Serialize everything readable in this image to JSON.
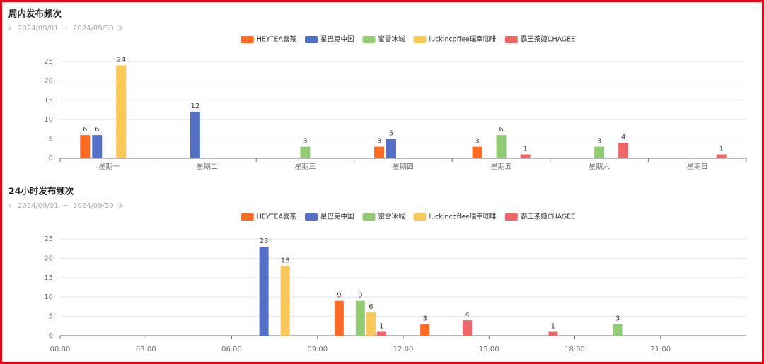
{
  "chart_data": [
    {
      "type": "bar",
      "title": "周内发布频次",
      "range": [
        "2024/09/01",
        "2024/09/30"
      ],
      "range_separator": "~",
      "categories": [
        "星期一",
        "星期二",
        "星期三",
        "星期四",
        "星期五",
        "星期六",
        "星期日"
      ],
      "series": [
        {
          "name": "HEYTEA喜茶",
          "color": "#ff6b22",
          "values": [
            6,
            null,
            null,
            3,
            3,
            null,
            null
          ]
        },
        {
          "name": "星巴克中国",
          "color": "#5470c6",
          "values": [
            6,
            12,
            null,
            5,
            null,
            null,
            null
          ]
        },
        {
          "name": "蜜雪冰城",
          "color": "#91cc75",
          "values": [
            null,
            null,
            3,
            null,
            6,
            3,
            null
          ]
        },
        {
          "name": "luckincoffee瑞幸咖啡",
          "color": "#fac858",
          "values": [
            24,
            null,
            null,
            null,
            null,
            null,
            null
          ]
        },
        {
          "name": "霸王茶姬CHAGEE",
          "color": "#ee6666",
          "values": [
            null,
            null,
            null,
            null,
            1,
            4,
            1
          ]
        }
      ],
      "ylim": [
        0,
        25
      ],
      "yticks": [
        0,
        5,
        10,
        15,
        20,
        25
      ],
      "grid": true,
      "legend": "top"
    },
    {
      "type": "bar",
      "title": "24小时发布频次",
      "range": [
        "2024/09/01",
        "2024/09/30"
      ],
      "range_separator": "~",
      "x": [
        7.5,
        10.5,
        13.5,
        16.5,
        19.5
      ],
      "series": [
        {
          "name": "HEYTEA喜茶",
          "color": "#ff6b22",
          "values": [
            null,
            9,
            3,
            null,
            null
          ]
        },
        {
          "name": "星巴克中国",
          "color": "#5470c6",
          "values": [
            23,
            null,
            null,
            null,
            null
          ]
        },
        {
          "name": "蜜雪冰城",
          "color": "#91cc75",
          "values": [
            null,
            9,
            null,
            null,
            3
          ]
        },
        {
          "name": "luckincoffee瑞幸咖啡",
          "color": "#fac858",
          "values": [
            18,
            6,
            null,
            null,
            null
          ]
        },
        {
          "name": "霸王茶姬CHAGEE",
          "color": "#ee6666",
          "values": [
            null,
            1,
            4,
            1,
            null
          ]
        }
      ],
      "xlim": [
        0,
        24
      ],
      "xticks": [
        {
          "value": 0,
          "label": "00:00"
        },
        {
          "value": 3,
          "label": "03:00"
        },
        {
          "value": 6,
          "label": "06:00"
        },
        {
          "value": 9,
          "label": "09:00"
        },
        {
          "value": 12,
          "label": "12:00"
        },
        {
          "value": 15,
          "label": "15:00"
        },
        {
          "value": 18,
          "label": "18:00"
        },
        {
          "value": 21,
          "label": "21:00"
        }
      ],
      "ylim": [
        0,
        25
      ],
      "yticks": [
        0,
        5,
        10,
        15,
        20,
        25
      ],
      "grid": true,
      "legend": "top"
    }
  ]
}
